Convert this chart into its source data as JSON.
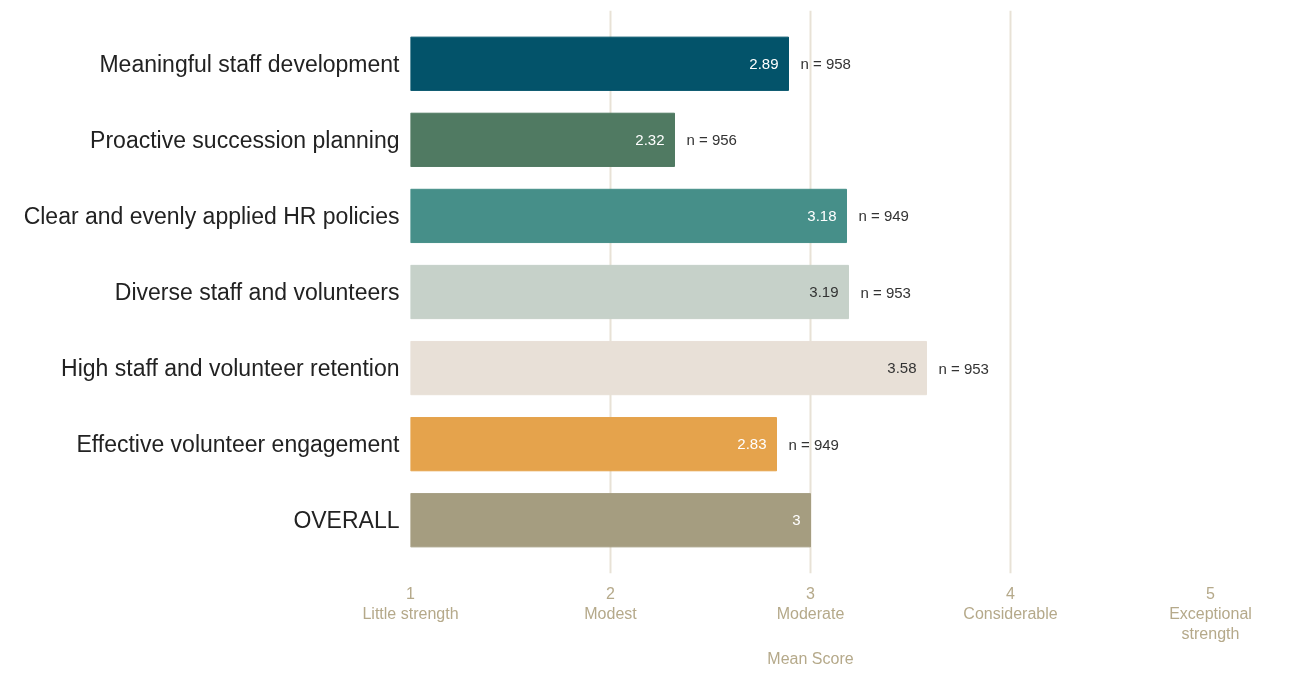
{
  "chart_data": {
    "type": "bar",
    "orientation": "horizontal",
    "xlabel": "Mean Score",
    "categories": [
      "Meaningful staff development",
      "Proactive succession planning",
      "Clear and evenly applied HR policies",
      "Diverse staff and volunteers",
      "High staff and volunteer retention",
      "Effective volunteer engagement",
      "OVERALL"
    ],
    "values": [
      2.89,
      2.32,
      3.18,
      3.19,
      3.58,
      2.83,
      3
    ],
    "colors": [
      "#03536a",
      "#507a62",
      "#468f89",
      "#c6d1c9",
      "#e8e0d7",
      "#e5a34c",
      "#a59d80"
    ],
    "data_labels": true,
    "xlim": [
      1,
      5
    ],
    "xticks": [
      {
        "value": 1,
        "label": "1\nLittle strength"
      },
      {
        "value": 2,
        "label": "2\nModest"
      },
      {
        "value": 3,
        "label": "3\nModerate"
      },
      {
        "value": 4,
        "label": "4\nConsiderable"
      },
      {
        "value": 5,
        "label": "5\nExceptional\nstrength"
      }
    ],
    "grid": "x",
    "annotations": [
      {
        "text": "n = 958",
        "x": 2.89,
        "y": "Meaningful staff development"
      },
      {
        "text": "n = 956",
        "x": 2.32,
        "y": "Proactive succession planning"
      },
      {
        "text": "n = 949",
        "x": 3.18,
        "y": "Clear and evenly applied HR policies"
      },
      {
        "text": "n = 953",
        "x": 3.19,
        "y": "Diverse staff and volunteers"
      },
      {
        "text": "n = 953",
        "x": 3.58,
        "y": "High staff and volunteer retention"
      },
      {
        "text": "n = 949",
        "x": 2.83,
        "y": "Effective volunteer engagement"
      }
    ]
  }
}
